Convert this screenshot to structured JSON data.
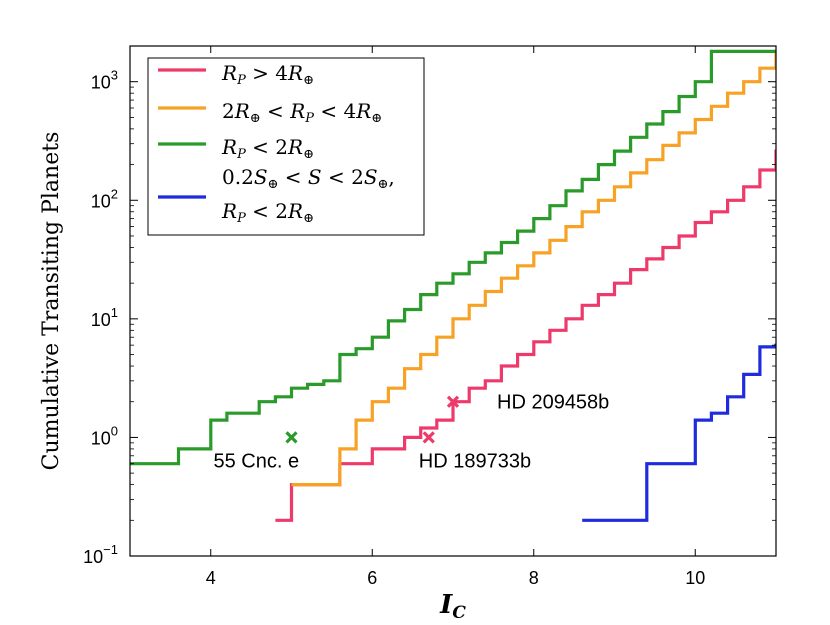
{
  "chart_data": {
    "type": "line",
    "drawstyle": "steps",
    "xlabel": "I",
    "xlabel_sub": "C",
    "ylabel": "Cumulative Transiting Planets",
    "xlim": [
      3,
      11
    ],
    "ylim": [
      0.1,
      2000
    ],
    "yscale": "log",
    "x_ticks": [
      4,
      6,
      8,
      10
    ],
    "y_ticks": [
      {
        "value": 0.1,
        "base": "10",
        "exp": "−1"
      },
      {
        "value": 1,
        "base": "10",
        "exp": "0"
      },
      {
        "value": 10,
        "base": "10",
        "exp": "1"
      },
      {
        "value": 100,
        "base": "10",
        "exp": "2"
      },
      {
        "value": 1000,
        "base": "10",
        "exp": "3"
      }
    ],
    "series": [
      {
        "name": "R_P > 4 R_⊕",
        "color": "#ee3a6a",
        "x": [
          4.8,
          5.0,
          5.6,
          6.0,
          6.4,
          6.6,
          6.8,
          7.0,
          7.2,
          7.4,
          7.6,
          7.8,
          8.0,
          8.2,
          8.4,
          8.6,
          8.8,
          9.0,
          9.2,
          9.4,
          9.6,
          9.8,
          10.0,
          10.2,
          10.4,
          10.6,
          10.8,
          11.0
        ],
        "y": [
          0.2,
          0.4,
          0.6,
          0.8,
          1.0,
          1.2,
          1.4,
          2.0,
          2.6,
          3.0,
          4.0,
          5.0,
          6.4,
          8.0,
          10.0,
          13.0,
          16.0,
          20.0,
          26.0,
          32.0,
          40.0,
          50.0,
          65.0,
          80.0,
          100.0,
          130.0,
          180.0,
          260.0
        ]
      },
      {
        "name": "2 R_⊕ < R_P < 4 R_⊕",
        "color": "#f7a125",
        "x": [
          5.0,
          5.6,
          5.8,
          6.0,
          6.2,
          6.4,
          6.6,
          6.8,
          7.0,
          7.2,
          7.4,
          7.6,
          7.8,
          8.0,
          8.2,
          8.4,
          8.6,
          8.8,
          9.0,
          9.2,
          9.4,
          9.6,
          9.8,
          10.0,
          10.2,
          10.4,
          10.6,
          10.8,
          11.0
        ],
        "y": [
          0.4,
          0.8,
          1.4,
          2.0,
          2.6,
          3.8,
          5.0,
          7.0,
          10.0,
          13.0,
          17.0,
          22.0,
          28.0,
          36.0,
          46.0,
          60.0,
          80.0,
          100.0,
          130.0,
          170.0,
          220.0,
          290.0,
          370.0,
          480.0,
          620.0,
          800.0,
          1000.0,
          1300.0,
          1700.0
        ]
      },
      {
        "name": "R_P < 2 R_⊕",
        "color": "#2a9b2a",
        "x": [
          3.0,
          3.6,
          4.0,
          4.2,
          4.6,
          4.8,
          5.0,
          5.2,
          5.4,
          5.6,
          5.8,
          6.0,
          6.2,
          6.4,
          6.6,
          6.8,
          7.0,
          7.2,
          7.4,
          7.6,
          7.8,
          8.0,
          8.2,
          8.4,
          8.6,
          8.8,
          9.0,
          9.2,
          9.4,
          9.6,
          9.8,
          10.0,
          10.2
        ],
        "y": [
          0.6,
          0.8,
          1.4,
          1.6,
          2.0,
          2.2,
          2.6,
          2.8,
          3.0,
          5.0,
          5.6,
          7.0,
          9.6,
          12.0,
          16.0,
          20.0,
          24.0,
          30.0,
          36.0,
          44.0,
          55.0,
          70.0,
          90.0,
          120.0,
          150.0,
          200.0,
          260.0,
          340.0,
          440.0,
          560.0,
          750.0,
          1000.0,
          1800.0
        ]
      },
      {
        "name": "0.2 S_⊕ < S < 2 S_⊕, R_P < 2 R_⊕",
        "color": "#1f2bdc",
        "x": [
          8.6,
          9.4,
          10.0,
          10.2,
          10.4,
          10.6,
          10.8,
          11.0
        ],
        "y": [
          0.2,
          0.6,
          1.4,
          1.6,
          2.2,
          3.4,
          5.8,
          6.0
        ]
      }
    ],
    "annotations": [
      {
        "label": "55 Cnc. e",
        "x": 5.0,
        "y": 1.0,
        "color": "#2a9b2a",
        "marker": "x"
      },
      {
        "label": "HD 209458b",
        "x": 7.0,
        "y": 2.0,
        "color": "#ee3a6a",
        "marker": "x"
      },
      {
        "label": "HD 189733b",
        "x": 6.7,
        "y": 1.0,
        "color": "#ee3a6a",
        "marker": "x"
      }
    ],
    "legend": {
      "position": "top-left",
      "entries": [
        {
          "lines": [
            "R_P > 4R_⊕"
          ],
          "color": "#ee3a6a"
        },
        {
          "lines": [
            "2R_⊕ < R_P < 4R_⊕"
          ],
          "color": "#f7a125"
        },
        {
          "lines": [
            "R_P < 2R_⊕"
          ],
          "color": "#2a9b2a"
        },
        {
          "lines": [
            "0.2S_⊕ < S < 2S_⊕,",
            "R_P < 2R_⊕"
          ],
          "color": "#1f2bdc"
        }
      ]
    }
  }
}
